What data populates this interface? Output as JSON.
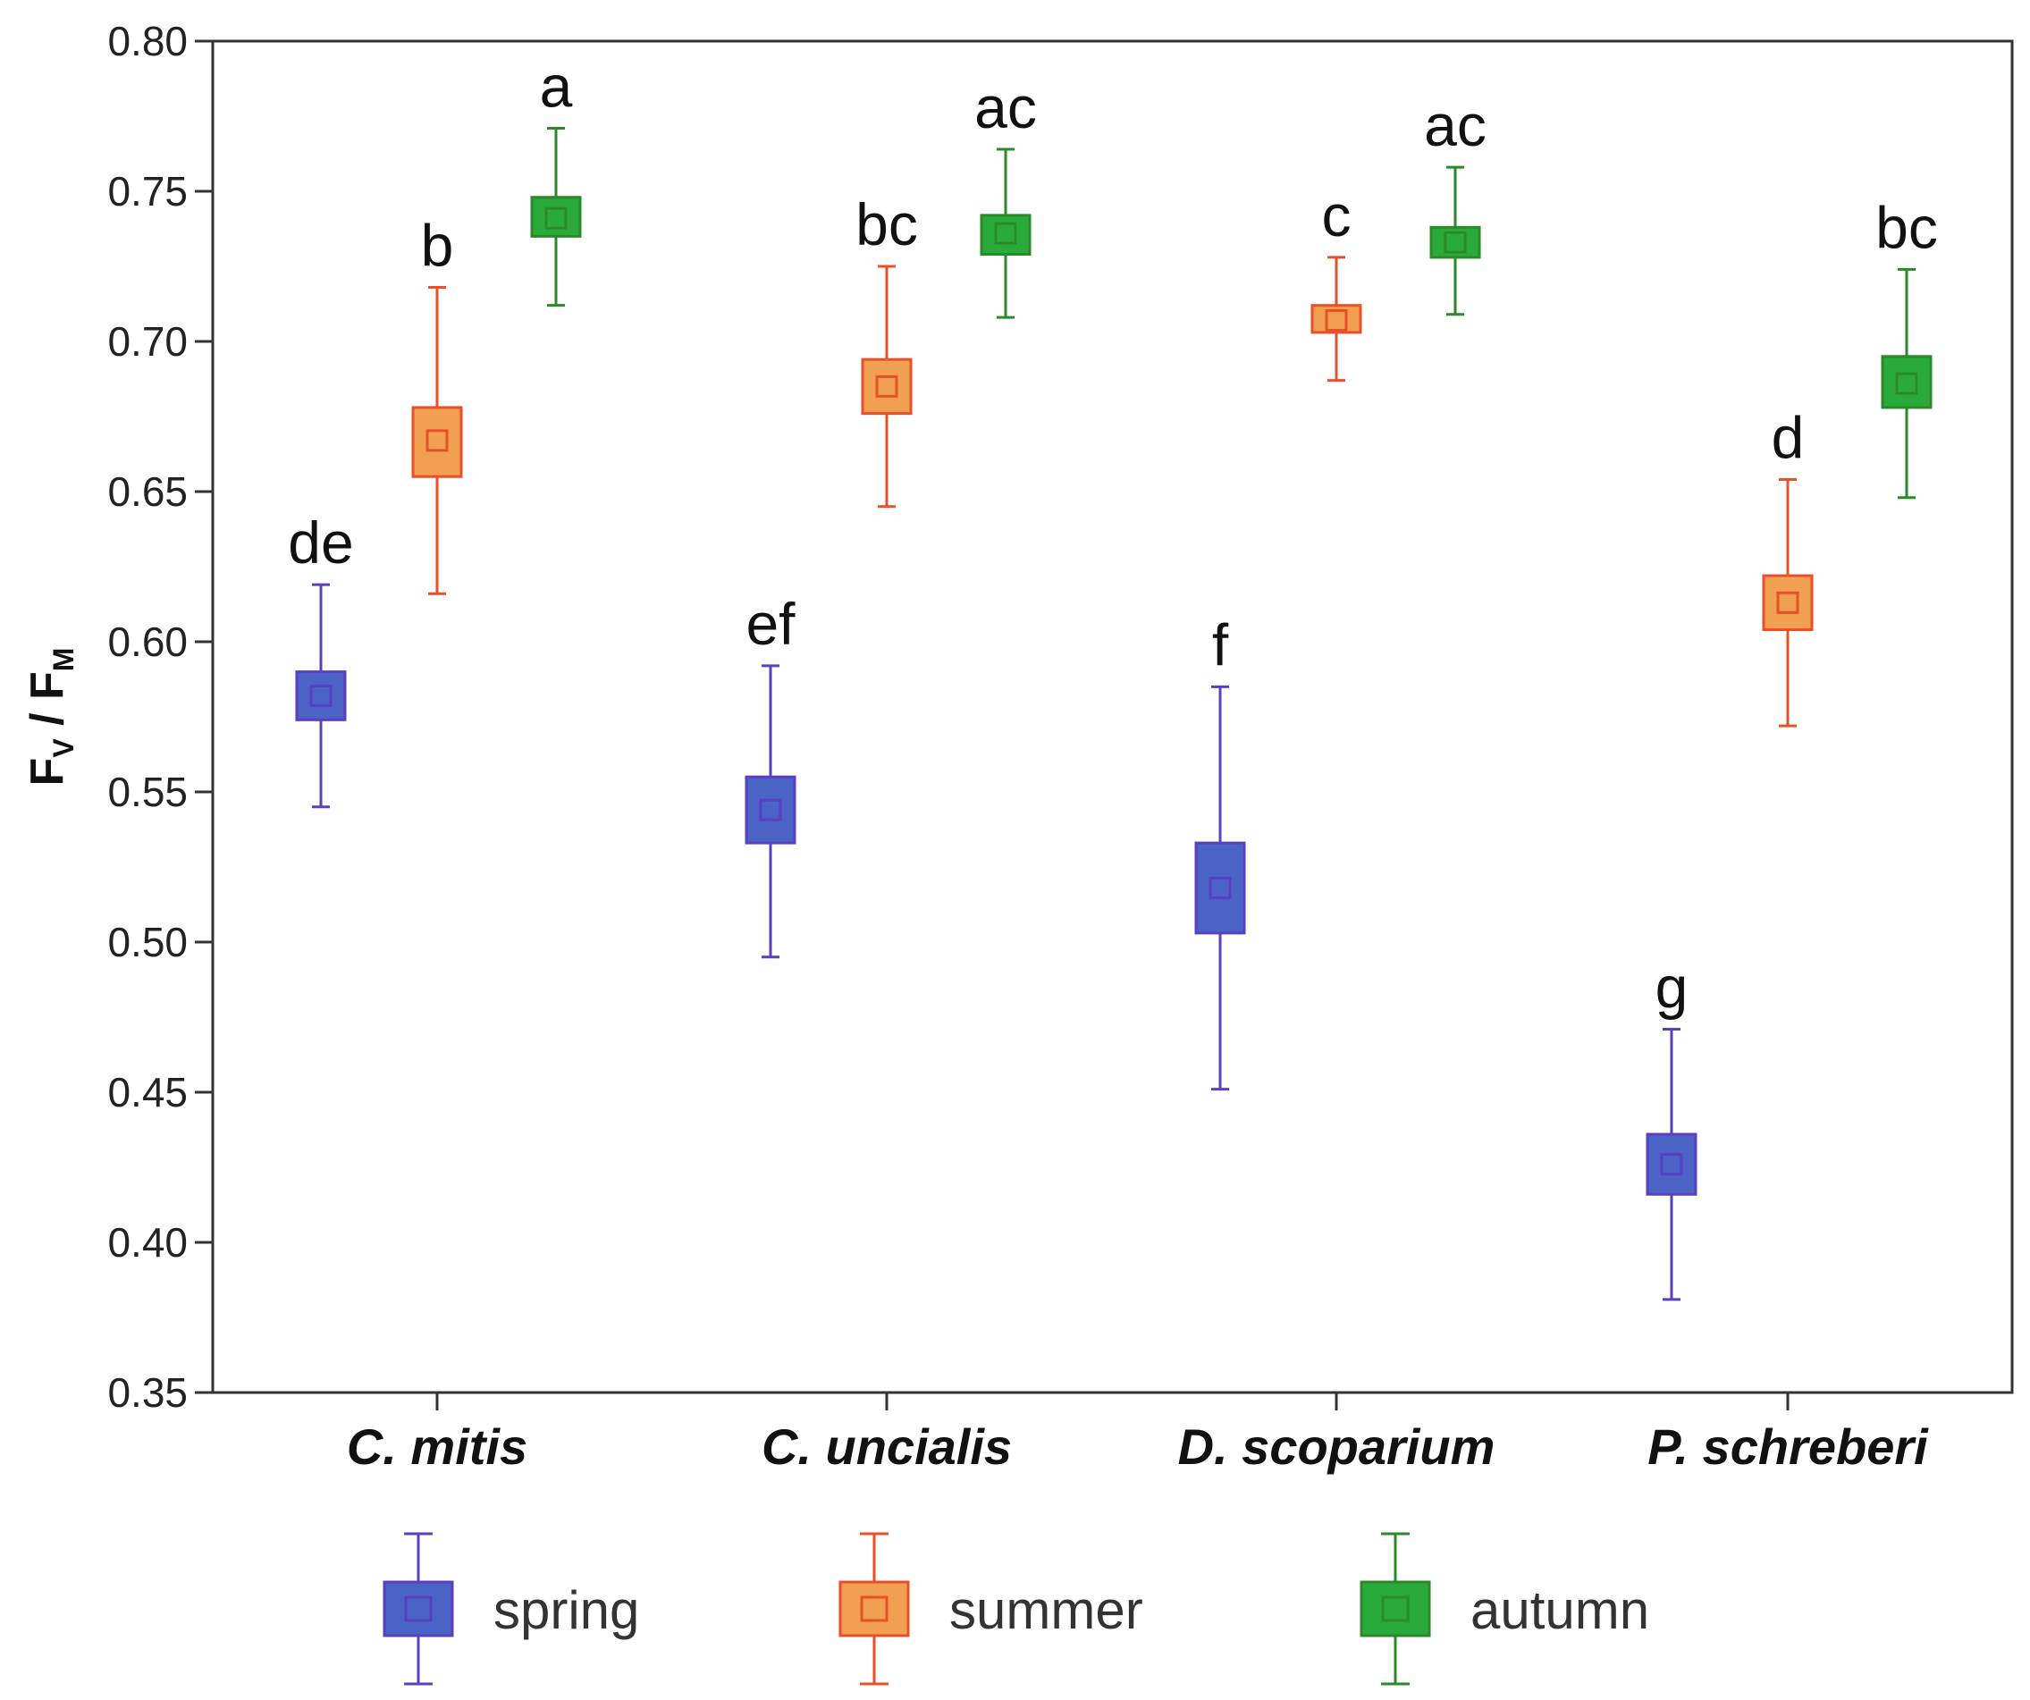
{
  "chart_data": {
    "type": "box",
    "title": "",
    "ylabel": {
      "main": "F",
      "sub1": "V",
      "sep": " / F",
      "sub2": "M"
    },
    "xlabel": "",
    "ylim": [
      0.35,
      0.8
    ],
    "yticks": [
      "0.35",
      "0.40",
      "0.45",
      "0.50",
      "0.55",
      "0.60",
      "0.65",
      "0.70",
      "0.75",
      "0.80"
    ],
    "categories": [
      "C. mitis",
      "C. uncialis",
      "D. scoparium",
      "P. schreberi"
    ],
    "grid": false,
    "legend_position": "bottom",
    "series": [
      {
        "name": "spring",
        "color": "#4a63c5",
        "edge": "#5a3fc0",
        "points": [
          {
            "category": "C. mitis",
            "mean": 0.582,
            "box_low": 0.574,
            "box_high": 0.59,
            "whisker_low": 0.545,
            "whisker_high": 0.619,
            "letter": "de"
          },
          {
            "category": "C. uncialis",
            "mean": 0.544,
            "box_low": 0.533,
            "box_high": 0.555,
            "whisker_low": 0.495,
            "whisker_high": 0.592,
            "letter": "ef"
          },
          {
            "category": "D. scoparium",
            "mean": 0.518,
            "box_low": 0.503,
            "box_high": 0.533,
            "whisker_low": 0.451,
            "whisker_high": 0.585,
            "letter": "f"
          },
          {
            "category": "P. schreberi",
            "mean": 0.426,
            "box_low": 0.416,
            "box_high": 0.436,
            "whisker_low": 0.381,
            "whisker_high": 0.471,
            "letter": "g"
          }
        ]
      },
      {
        "name": "summer",
        "color": "#f0a050",
        "edge": "#e8502a",
        "points": [
          {
            "category": "C. mitis",
            "mean": 0.667,
            "box_low": 0.655,
            "box_high": 0.678,
            "whisker_low": 0.616,
            "whisker_high": 0.718,
            "letter": "b"
          },
          {
            "category": "C. uncialis",
            "mean": 0.685,
            "box_low": 0.676,
            "box_high": 0.694,
            "whisker_low": 0.645,
            "whisker_high": 0.725,
            "letter": "bc"
          },
          {
            "category": "D. scoparium",
            "mean": 0.707,
            "box_low": 0.703,
            "box_high": 0.712,
            "whisker_low": 0.687,
            "whisker_high": 0.728,
            "letter": "c"
          },
          {
            "category": "P. schreberi",
            "mean": 0.613,
            "box_low": 0.604,
            "box_high": 0.622,
            "whisker_low": 0.572,
            "whisker_high": 0.654,
            "letter": "d"
          }
        ]
      },
      {
        "name": "autumn",
        "color": "#2aaa3a",
        "edge": "#2a8a2a",
        "points": [
          {
            "category": "C. mitis",
            "mean": 0.741,
            "box_low": 0.735,
            "box_high": 0.748,
            "whisker_low": 0.712,
            "whisker_high": 0.771,
            "letter": "a"
          },
          {
            "category": "C. uncialis",
            "mean": 0.736,
            "box_low": 0.729,
            "box_high": 0.742,
            "whisker_low": 0.708,
            "whisker_high": 0.764,
            "letter": "ac"
          },
          {
            "category": "D. scoparium",
            "mean": 0.733,
            "box_low": 0.728,
            "box_high": 0.738,
            "whisker_low": 0.709,
            "whisker_high": 0.758,
            "letter": "ac"
          },
          {
            "category": "P. schreberi",
            "mean": 0.686,
            "box_low": 0.678,
            "box_high": 0.695,
            "whisker_low": 0.648,
            "whisker_high": 0.724,
            "letter": "bc"
          }
        ]
      }
    ]
  }
}
